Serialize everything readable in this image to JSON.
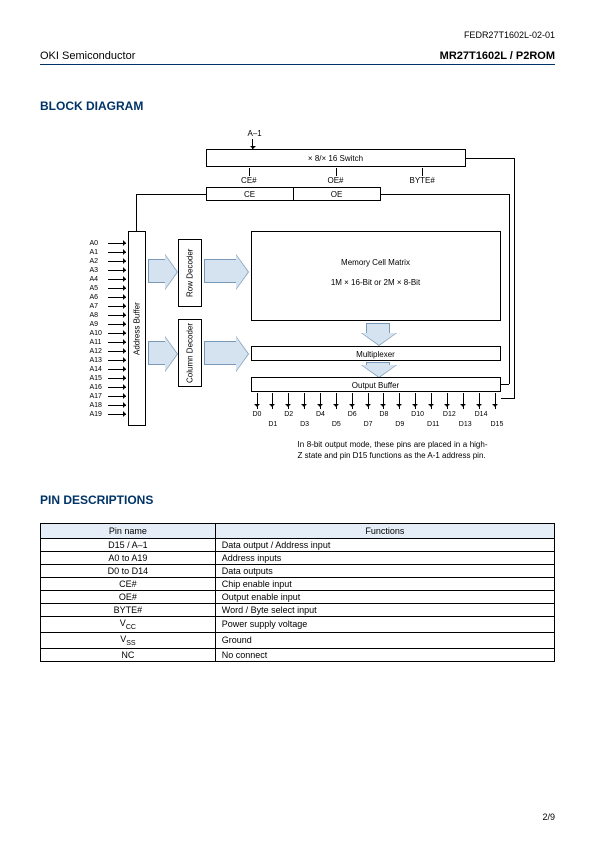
{
  "doc_number": "FEDR27T1602L-02-01",
  "vendor": "OKI Semiconductor",
  "part": "MR27T1602L / P2ROM",
  "sections": {
    "block_diagram": "BLOCK DIAGRAM",
    "pin_descriptions": "PIN DESCRIPTIONS"
  },
  "diagram": {
    "a1": "A–1",
    "switch": "× 8/× 16 Switch",
    "sig_top": {
      "ce": "CE#",
      "oe": "OE#",
      "byte": "BYTE#"
    },
    "sig_mid": {
      "ce": "CE",
      "oe": "OE"
    },
    "addr_buffer": "Address Buffer",
    "row_decoder": "Row Decoder",
    "col_decoder": "Column Decoder",
    "matrix_l1": "Memory Cell Matrix",
    "matrix_l2": "1M × 16-Bit  or  2M × 8-Bit",
    "mux": "Multiplexer",
    "obuf": "Output Buffer",
    "addresses": [
      "A0",
      "A1",
      "A2",
      "A3",
      "A4",
      "A5",
      "A6",
      "A7",
      "A8",
      "A9",
      "A10",
      "A11",
      "A12",
      "A13",
      "A14",
      "A15",
      "A16",
      "A17",
      "A18",
      "A19"
    ],
    "data_top": [
      "D0",
      "D2",
      "D4",
      "D6",
      "D8",
      "D10",
      "D12",
      "D14"
    ],
    "data_bot": [
      "D1",
      "D3",
      "D5",
      "D7",
      "D9",
      "D11",
      "D13",
      "D15"
    ],
    "note": "In 8-bit output mode, these pins are placed in a high-Z state and pin D15 functions as the A-1 address pin.",
    "colors": {
      "arrow_fill": "#d5e3f0",
      "arrow_border": "#7a99b8",
      "heading": "#003366"
    }
  },
  "pin_table": {
    "headers": {
      "name": "Pin name",
      "func": "Functions"
    },
    "rows": [
      {
        "name": "D15 / A–1",
        "func": "Data output / Address input"
      },
      {
        "name": "A0 to A19",
        "func": "Address inputs"
      },
      {
        "name": "D0 to D14",
        "func": "Data outputs"
      },
      {
        "name": "CE#",
        "func": "Chip enable input"
      },
      {
        "name": "OE#",
        "func": "Output enable input"
      },
      {
        "name": "BYTE#",
        "func": "Word / Byte select input"
      },
      {
        "name": "V_CC",
        "func": "Power supply voltage"
      },
      {
        "name": "V_SS",
        "func": "Ground"
      },
      {
        "name": "NC",
        "func": "No connect"
      }
    ]
  },
  "page": "2/9"
}
